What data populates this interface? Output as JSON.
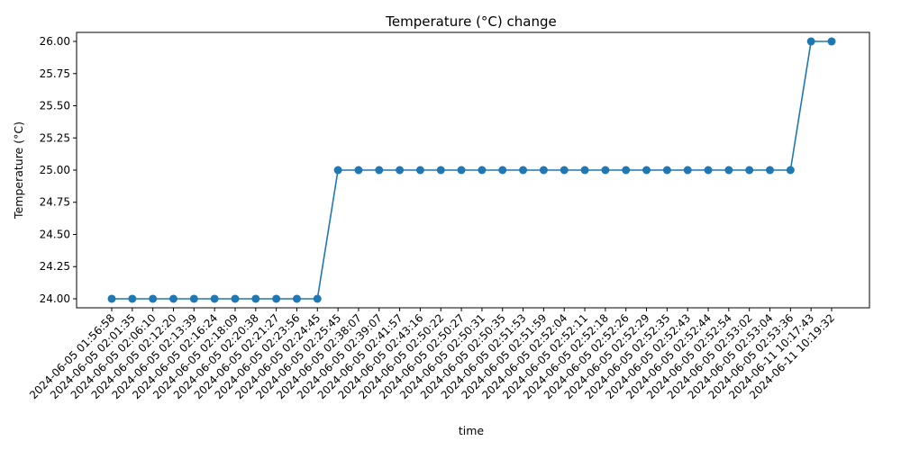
{
  "chart_data": {
    "type": "line",
    "title": "Temperature (°C) change",
    "xlabel": "time",
    "ylabel": "Temperature (°C)",
    "ylim": [
      23.93,
      26.07
    ],
    "yticks": [
      24.0,
      24.25,
      24.5,
      24.75,
      25.0,
      25.25,
      25.5,
      25.75,
      26.0
    ],
    "grid": false,
    "legend": "none",
    "color": "#1f77b4",
    "x": [
      "2024-06-05 01:56:58",
      "2024-06-05 02:01:35",
      "2024-06-05 02:06:10",
      "2024-06-05 02:12:20",
      "2024-06-05 02:13:39",
      "2024-06-05 02:16:24",
      "2024-06-05 02:18:09",
      "2024-06-05 02:20:38",
      "2024-06-05 02:21:27",
      "2024-06-05 02:23:56",
      "2024-06-05 02:24:45",
      "2024-06-05 02:25:45",
      "2024-06-05 02:38:07",
      "2024-06-05 02:39:07",
      "2024-06-05 02:41:57",
      "2024-06-05 02:43:16",
      "2024-06-05 02:50:22",
      "2024-06-05 02:50:27",
      "2024-06-05 02:50:31",
      "2024-06-05 02:50:35",
      "2024-06-05 02:51:53",
      "2024-06-05 02:51:59",
      "2024-06-05 02:52:04",
      "2024-06-05 02:52:11",
      "2024-06-05 02:52:18",
      "2024-06-05 02:52:26",
      "2024-06-05 02:52:29",
      "2024-06-05 02:52:35",
      "2024-06-05 02:52:43",
      "2024-06-05 02:52:44",
      "2024-06-05 02:52:54",
      "2024-06-05 02:53:02",
      "2024-06-05 02:53:04",
      "2024-06-05 02:53:36",
      "2024-06-11 10:17:43",
      "2024-06-11 10:19:32"
    ],
    "values": [
      24,
      24,
      24,
      24,
      24,
      24,
      24,
      24,
      24,
      24,
      24,
      25,
      25,
      25,
      25,
      25,
      25,
      25,
      25,
      25,
      25,
      25,
      25,
      25,
      25,
      25,
      25,
      25,
      25,
      25,
      25,
      25,
      25,
      25,
      26,
      26
    ]
  }
}
